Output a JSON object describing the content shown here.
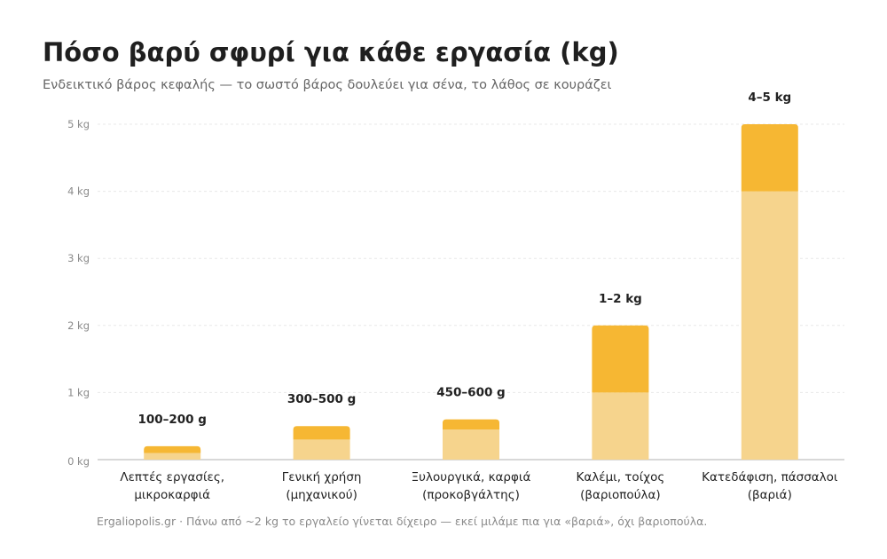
{
  "header": {
    "title": "Πόσο βαρύ σφυρί για κάθε εργασία (kg)",
    "subtitle": "Ενδεικτικό βάρος κεφαλής — το σωστό βάρος δουλεύει για σένα, το λάθος σε κουράζει"
  },
  "footer": {
    "note": "Ergaliopolis.gr · Πάνω από ~2 kg το εργαλείο γίνεται δίχειρο — εκεί μιλάμε πια για «βαριά», όχι βαριοπούλα."
  },
  "colors": {
    "min_part": "#f6d48d",
    "range_part": "#f6b733",
    "grid": "#e8e8e8",
    "axis": "#cccccc"
  },
  "chart_data": {
    "type": "bar",
    "stacked": true,
    "unit": "kg",
    "categories": [
      [
        "Λεπτές εργασίες,",
        "μικροκαρφιά"
      ],
      [
        "Γενική χρήση",
        "(μηχανικού)"
      ],
      [
        "Ξυλουργικά, καρφιά",
        "(προκοβγάλτης)"
      ],
      [
        "Καλέμι, τοίχος",
        "(βαριοπούλα)"
      ],
      [
        "Κατεδάφιση, πάσσαλοι",
        "(βαριά)"
      ]
    ],
    "min_values": [
      0.1,
      0.3,
      0.45,
      1,
      4
    ],
    "max_values": [
      0.2,
      0.5,
      0.6,
      2,
      5
    ],
    "data_labels": [
      "100–200 g",
      "300–500 g",
      "450–600 g",
      "1–2 kg",
      "4–5 kg"
    ],
    "ylim": [
      0,
      5
    ],
    "yticks": [
      0,
      1,
      2,
      3,
      4,
      5
    ],
    "ytick_labels": [
      "0 kg",
      "1 kg",
      "2 kg",
      "3 kg",
      "4 kg",
      "5 kg"
    ],
    "grid": true,
    "legend": "none"
  }
}
